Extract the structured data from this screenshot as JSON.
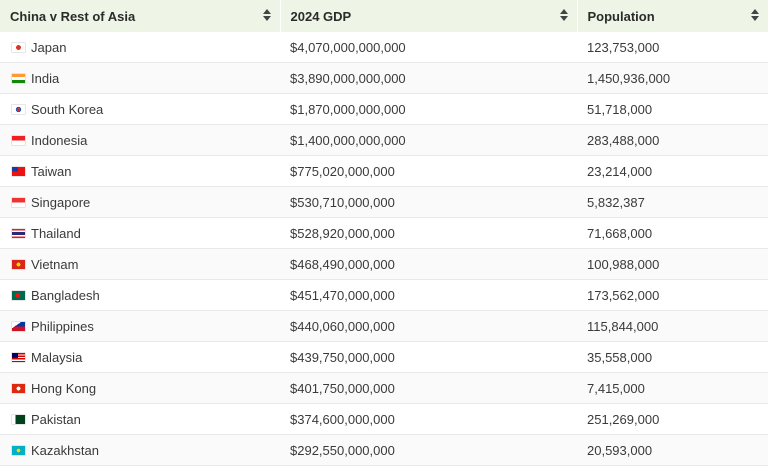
{
  "table": {
    "headers": [
      "China v Rest of Asia",
      "2024 GDP",
      "Population"
    ],
    "rows": [
      {
        "country": "Japan",
        "gdp": "$4,070,000,000,000",
        "population": "123,753,000",
        "flag_icon": "japan-flag-icon"
      },
      {
        "country": "India",
        "gdp": "$3,890,000,000,000",
        "population": "1,450,936,000",
        "flag_icon": "india-flag-icon"
      },
      {
        "country": "South Korea",
        "gdp": "$1,870,000,000,000",
        "population": "51,718,000",
        "flag_icon": "south-korea-flag-icon"
      },
      {
        "country": "Indonesia",
        "gdp": "$1,400,000,000,000",
        "population": "283,488,000",
        "flag_icon": "indonesia-flag-icon"
      },
      {
        "country": "Taiwan",
        "gdp": "$775,020,000,000",
        "population": "23,214,000",
        "flag_icon": "taiwan-flag-icon"
      },
      {
        "country": "Singapore",
        "gdp": "$530,710,000,000",
        "population": "5,832,387",
        "flag_icon": "singapore-flag-icon"
      },
      {
        "country": "Thailand",
        "gdp": "$528,920,000,000",
        "population": "71,668,000",
        "flag_icon": "thailand-flag-icon"
      },
      {
        "country": "Vietnam",
        "gdp": "$468,490,000,000",
        "population": "100,988,000",
        "flag_icon": "vietnam-flag-icon"
      },
      {
        "country": "Bangladesh",
        "gdp": "$451,470,000,000",
        "population": "173,562,000",
        "flag_icon": "bangladesh-flag-icon"
      },
      {
        "country": "Philippines",
        "gdp": "$440,060,000,000",
        "population": "115,844,000",
        "flag_icon": "philippines-flag-icon"
      },
      {
        "country": "Malaysia",
        "gdp": "$439,750,000,000",
        "population": "35,558,000",
        "flag_icon": "malaysia-flag-icon"
      },
      {
        "country": "Hong Kong",
        "gdp": "$401,750,000,000",
        "population": "7,415,000",
        "flag_icon": "hong-kong-flag-icon"
      },
      {
        "country": "Pakistan",
        "gdp": "$374,600,000,000",
        "population": "251,269,000",
        "flag_icon": "pakistan-flag-icon"
      },
      {
        "country": "Kazakhstan",
        "gdp": "$292,550,000,000",
        "population": "20,593,000",
        "flag_icon": "kazakhstan-flag-icon"
      }
    ]
  },
  "colors": {
    "header_bg": "#eef5e6",
    "row_border": "#e9e9e9"
  }
}
